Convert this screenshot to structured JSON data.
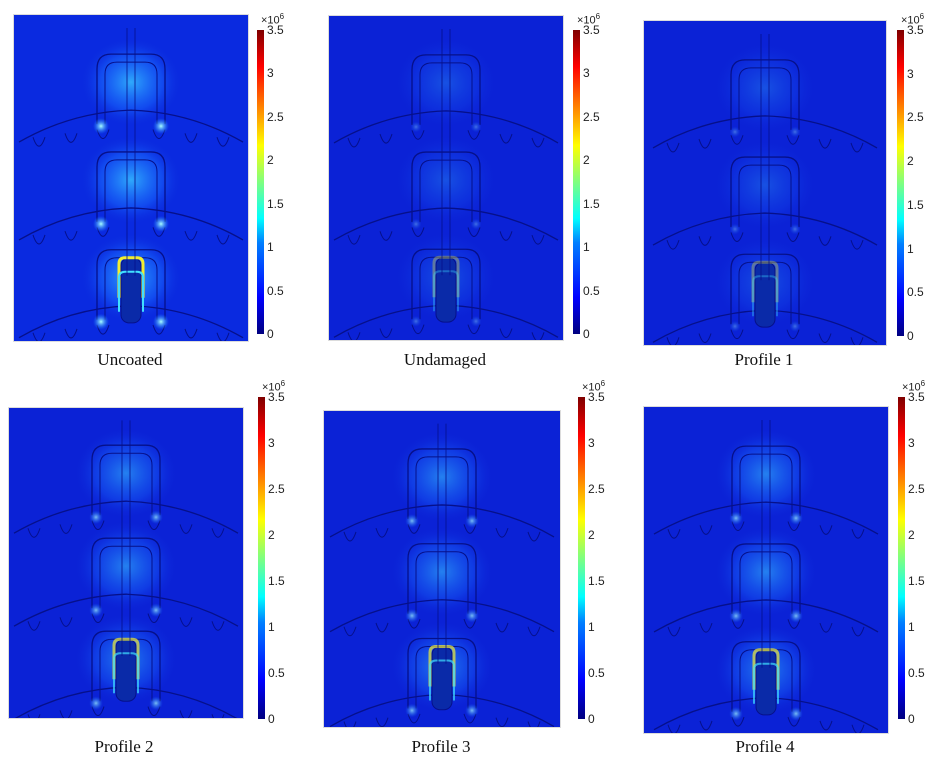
{
  "colorbar": {
    "multiplier_base": "×10",
    "multiplier_exp": "6",
    "ticks": [
      "3.5",
      "3",
      "2.5",
      "2",
      "1.5",
      "1",
      "0.5",
      "0"
    ],
    "max": 3.5,
    "min": 0,
    "colormap": "jet"
  },
  "panels": [
    {
      "caption": "Uncoated",
      "intensity": "high"
    },
    {
      "caption": "Undamaged",
      "intensity": "low"
    },
    {
      "caption": "Profile 1",
      "intensity": "low"
    },
    {
      "caption": "Profile 2",
      "intensity": "medium"
    },
    {
      "caption": "Profile 3",
      "intensity": "medium"
    },
    {
      "caption": "Profile 4",
      "intensity": "medium"
    }
  ],
  "colors": {
    "background_field": "#0a1fd8",
    "outline": "#06108a"
  }
}
